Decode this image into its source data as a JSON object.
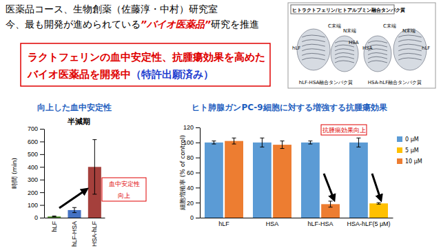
{
  "header": {
    "line1": "医薬品コース、生物創薬（佐藤淳・中村）研究室",
    "line2": [
      "今、最も開発が進められている",
      "”バイオ医薬品”",
      "研究を推進"
    ]
  },
  "highlight": {
    "line1": "ラクトフェリンの血中安定性、抗腫瘍効果を高めた",
    "line2": [
      "バイオ医薬品を開発中",
      "（特許出願済み）"
    ]
  },
  "figure": {
    "title": "ヒトラクトフェリン/ヒトアルブミン融合タンパク質",
    "panels": [
      {
        "caption": "hLF-HSA融合タンパク質",
        "labels": [
          "hLF",
          "C末端",
          "N末端",
          "HSA"
        ]
      },
      {
        "caption": "HSA-hLF融合タンパク質",
        "labels": [
          "HSA",
          "C末端",
          "N末端",
          "hLF"
        ]
      }
    ]
  },
  "chart_data": [
    {
      "type": "bar",
      "title": "向上した血中安定性",
      "subtitle": "半減期",
      "y_label": "時間 (min)",
      "categories": [
        "hLF",
        "hLF-HSA",
        "HSA-hLF"
      ],
      "values": [
        10,
        60,
        400
      ],
      "errors": [
        3,
        20,
        215
      ],
      "colors": [
        "#5b9b3a",
        "#4472c4",
        "#a5403c"
      ],
      "ylim": [
        0,
        700
      ],
      "yticks": [
        0,
        100,
        200,
        300,
        400,
        500,
        600,
        700
      ],
      "grid": false,
      "annotation": [
        "血中安定性",
        "向上"
      ]
    },
    {
      "type": "bar",
      "title": "ヒト肺腺ガンPC-9細胞に対する増強する抗腫瘍効果",
      "y_label": "細胞増殖率 (% of control)",
      "categories": [
        "hLF",
        "HSA",
        "hLF-HSA",
        "HSA-hLF(5 μM)"
      ],
      "series": [
        {
          "name": "0 μM",
          "color": "#5b9bd5",
          "values": [
            100,
            100,
            100,
            100
          ],
          "errors": [
            2,
            6,
            2,
            6
          ]
        },
        {
          "name": "5 μM",
          "color": "#ffc000",
          "values": [
            null,
            null,
            null,
            19
          ],
          "errors": [
            null,
            null,
            null,
            1
          ]
        },
        {
          "name": "10 μM",
          "color": "#ed7d31",
          "values": [
            102,
            97,
            18,
            null
          ],
          "errors": [
            4,
            5,
            4,
            null
          ]
        }
      ],
      "ylim": [
        0,
        120
      ],
      "yticks": [
        0,
        20,
        40,
        60,
        80,
        100,
        120
      ],
      "grid": false,
      "legend": "right",
      "annotation": "抗腫瘍効果向上"
    }
  ]
}
